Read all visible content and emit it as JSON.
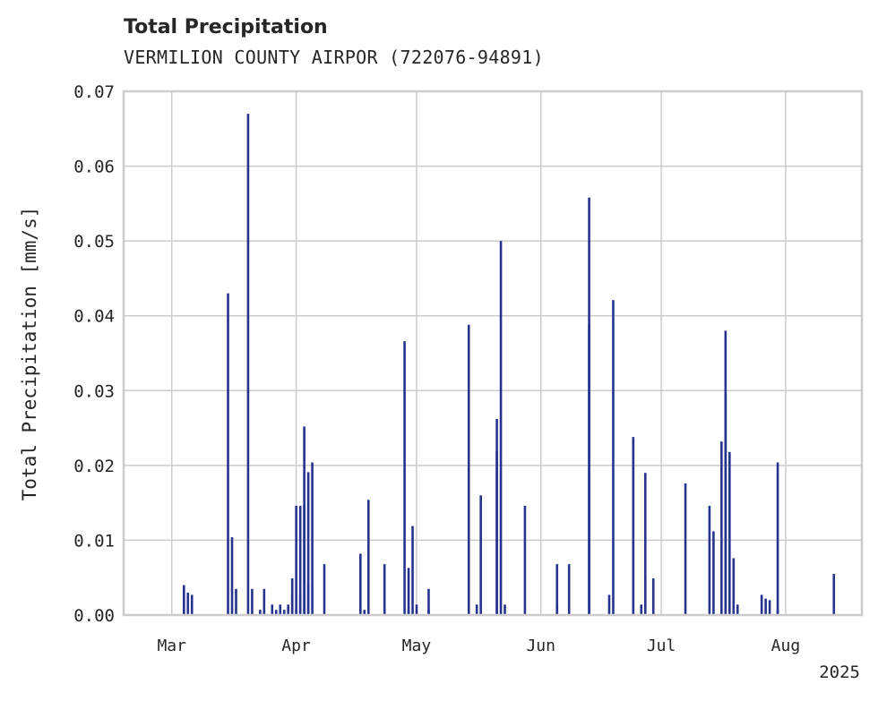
{
  "chart_data": {
    "type": "bar",
    "title": "Total Precipitation",
    "subtitle": "VERMILION COUNTY AIRPOR (722076-94891)",
    "ylabel": "Total Precipitation [mm/s]",
    "xlabel": "",
    "ylim": [
      0,
      0.07
    ],
    "yticks": [
      "0.00",
      "0.01",
      "0.02",
      "0.03",
      "0.04",
      "0.05",
      "0.06",
      "0.07"
    ],
    "xlim": [
      "2025-02-17",
      "2025-08-20"
    ],
    "xticks": [
      {
        "date": "2025-03-01",
        "label": "Mar"
      },
      {
        "date": "2025-04-01",
        "label": "Apr"
      },
      {
        "date": "2025-05-01",
        "label": "May"
      },
      {
        "date": "2025-06-01",
        "label": "Jun"
      },
      {
        "date": "2025-07-01",
        "label": "Jul"
      },
      {
        "date": "2025-08-01",
        "label": "Aug"
      }
    ],
    "year_label": "2025",
    "grid": true,
    "bar_color": "#26338f",
    "series": [
      {
        "x": [
          "2025-03-04",
          "2025-03-04",
          "2025-03-05",
          "2025-03-06",
          "2025-03-15",
          "2025-03-16",
          "2025-03-17",
          "2025-03-20",
          "2025-03-21",
          "2025-03-23",
          "2025-03-24",
          "2025-03-26",
          "2025-03-27",
          "2025-03-28",
          "2025-03-29",
          "2025-03-30",
          "2025-03-31",
          "2025-03-31",
          "2025-04-01",
          "2025-04-01",
          "2025-04-02",
          "2025-04-02",
          "2025-04-03",
          "2025-04-03",
          "2025-04-04",
          "2025-04-04",
          "2025-04-05",
          "2025-04-08",
          "2025-04-17",
          "2025-04-18",
          "2025-04-19",
          "2025-04-23",
          "2025-04-28",
          "2025-04-29",
          "2025-04-29",
          "2025-04-30",
          "2025-05-01",
          "2025-05-04",
          "2025-05-04",
          "2025-05-14",
          "2025-05-16",
          "2025-05-17",
          "2025-05-21",
          "2025-05-21",
          "2025-05-22",
          "2025-05-23",
          "2025-05-28",
          "2025-06-05",
          "2025-06-05",
          "2025-06-08",
          "2025-06-13",
          "2025-06-13",
          "2025-06-18",
          "2025-06-19",
          "2025-06-24",
          "2025-06-26",
          "2025-06-27",
          "2025-06-29",
          "2025-07-07",
          "2025-07-13",
          "2025-07-14",
          "2025-07-16",
          "2025-07-17",
          "2025-07-17",
          "2025-07-18",
          "2025-07-19",
          "2025-07-19",
          "2025-07-20",
          "2025-07-26",
          "2025-07-27",
          "2025-07-28",
          "2025-07-30",
          "2025-07-30",
          "2025-08-13"
        ],
        "values": [
          0.004,
          0.0035,
          0.003,
          0.0027,
          0.043,
          0.0104,
          0.0035,
          0.067,
          0.0035,
          0.0007,
          0.0035,
          0.0014,
          0.0007,
          0.0014,
          0.0007,
          0.0014,
          0.0027,
          0.0049,
          0.0146,
          0.0007,
          0.0027,
          0.0146,
          0.0252,
          0.0146,
          0.0041,
          0.0191,
          0.0204,
          0.0068,
          0.0082,
          0.0007,
          0.0154,
          0.0068,
          0.0366,
          0.0007,
          0.0063,
          0.0119,
          0.0014,
          0.0035,
          0.0007,
          0.0388,
          0.0014,
          0.016,
          0.0218,
          0.0262,
          0.05,
          0.0014,
          0.0146,
          0.0068,
          0.0014,
          0.0068,
          0.0558,
          0.0388,
          0.0027,
          0.0421,
          0.0238,
          0.0014,
          0.019,
          0.0049,
          0.0176,
          0.0146,
          0.0112,
          0.0232,
          0.038,
          0.0296,
          0.0218,
          0.0076,
          0.0007,
          0.0014,
          0.0027,
          0.0022,
          0.002,
          0.0204,
          0.0007,
          0.0055
        ]
      }
    ]
  }
}
